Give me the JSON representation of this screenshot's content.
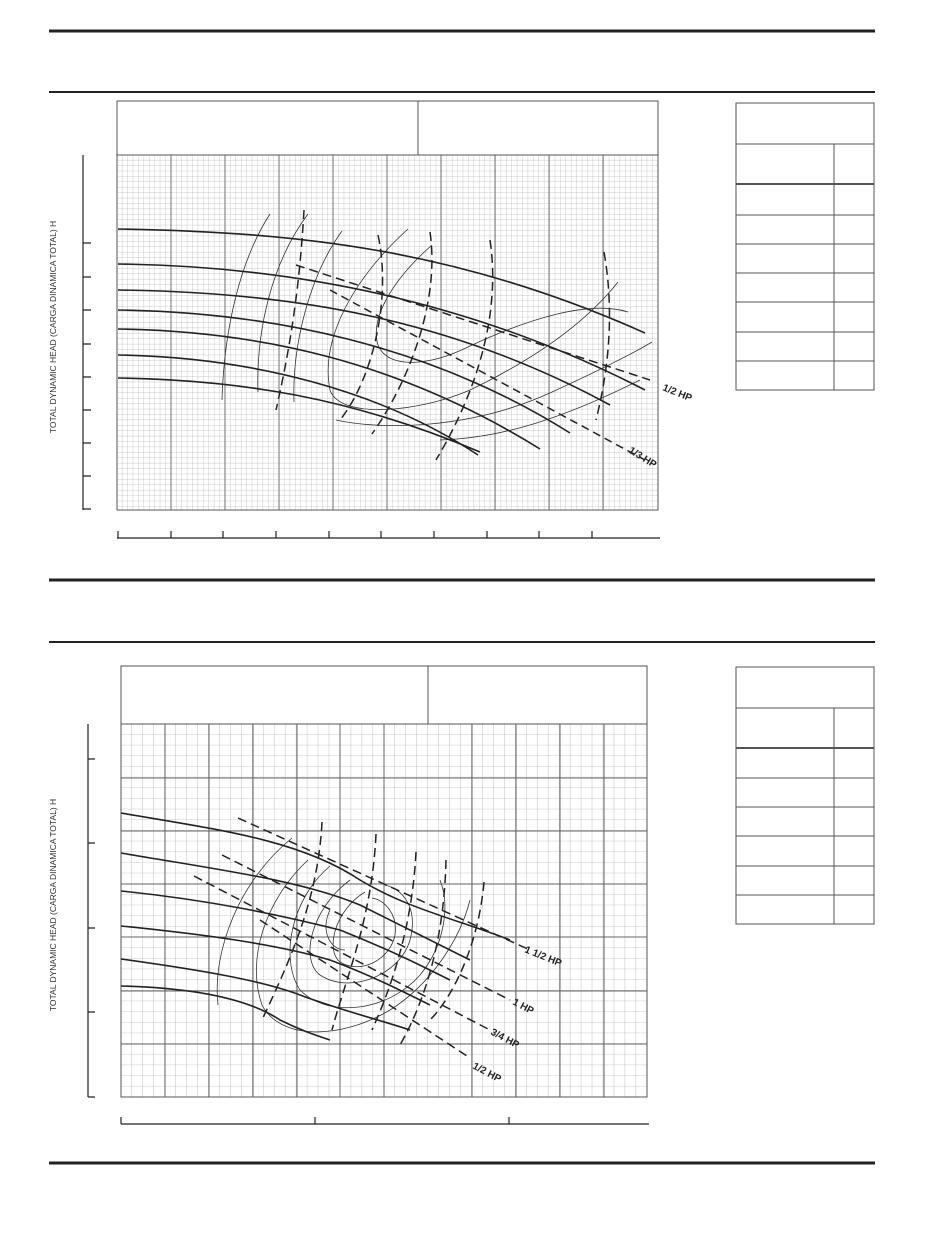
{
  "charts": [
    {
      "y_axis_label": "TOTAL DYNAMIC HEAD (CARGA DINAMICA TOTAL) H",
      "curve_labels": [
        "1/2 HP",
        "1/3 HP"
      ]
    },
    {
      "y_axis_label": "TOTAL DYNAMIC HEAD (CARGA DINAMICA TOTAL) H",
      "curve_labels": [
        "1 1/2 HP",
        "1 HP",
        "3/4 HP",
        "1/2 HP"
      ]
    }
  ]
}
